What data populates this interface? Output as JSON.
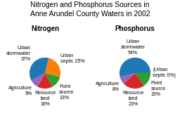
{
  "title": "Nitrogen and Phosphorus Sources in",
  "subtitle": "Anne Arundel County Waters in 2002",
  "chart_data": [
    {
      "type": "pie",
      "title": "Nitrogen",
      "categories": [
        "Urban\nstormwater\n37%",
        "Urban\nseptic 25%",
        "Point\nsource\n13%",
        "Resource\nland\n16%",
        "Agriculture\n9%"
      ],
      "values": [
        37,
        25,
        13,
        16,
        9
      ]
    },
    {
      "type": "pie",
      "title": "Phosphorus",
      "categories": [
        "Urban\nstormwater\n54%",
        "(Urban\nseptic 0%)",
        "Point\nsource\n15%",
        "Resource\nland\n23%",
        "Agriculture\n8%"
      ],
      "values": [
        54,
        0.001,
        15,
        23,
        8
      ]
    }
  ]
}
